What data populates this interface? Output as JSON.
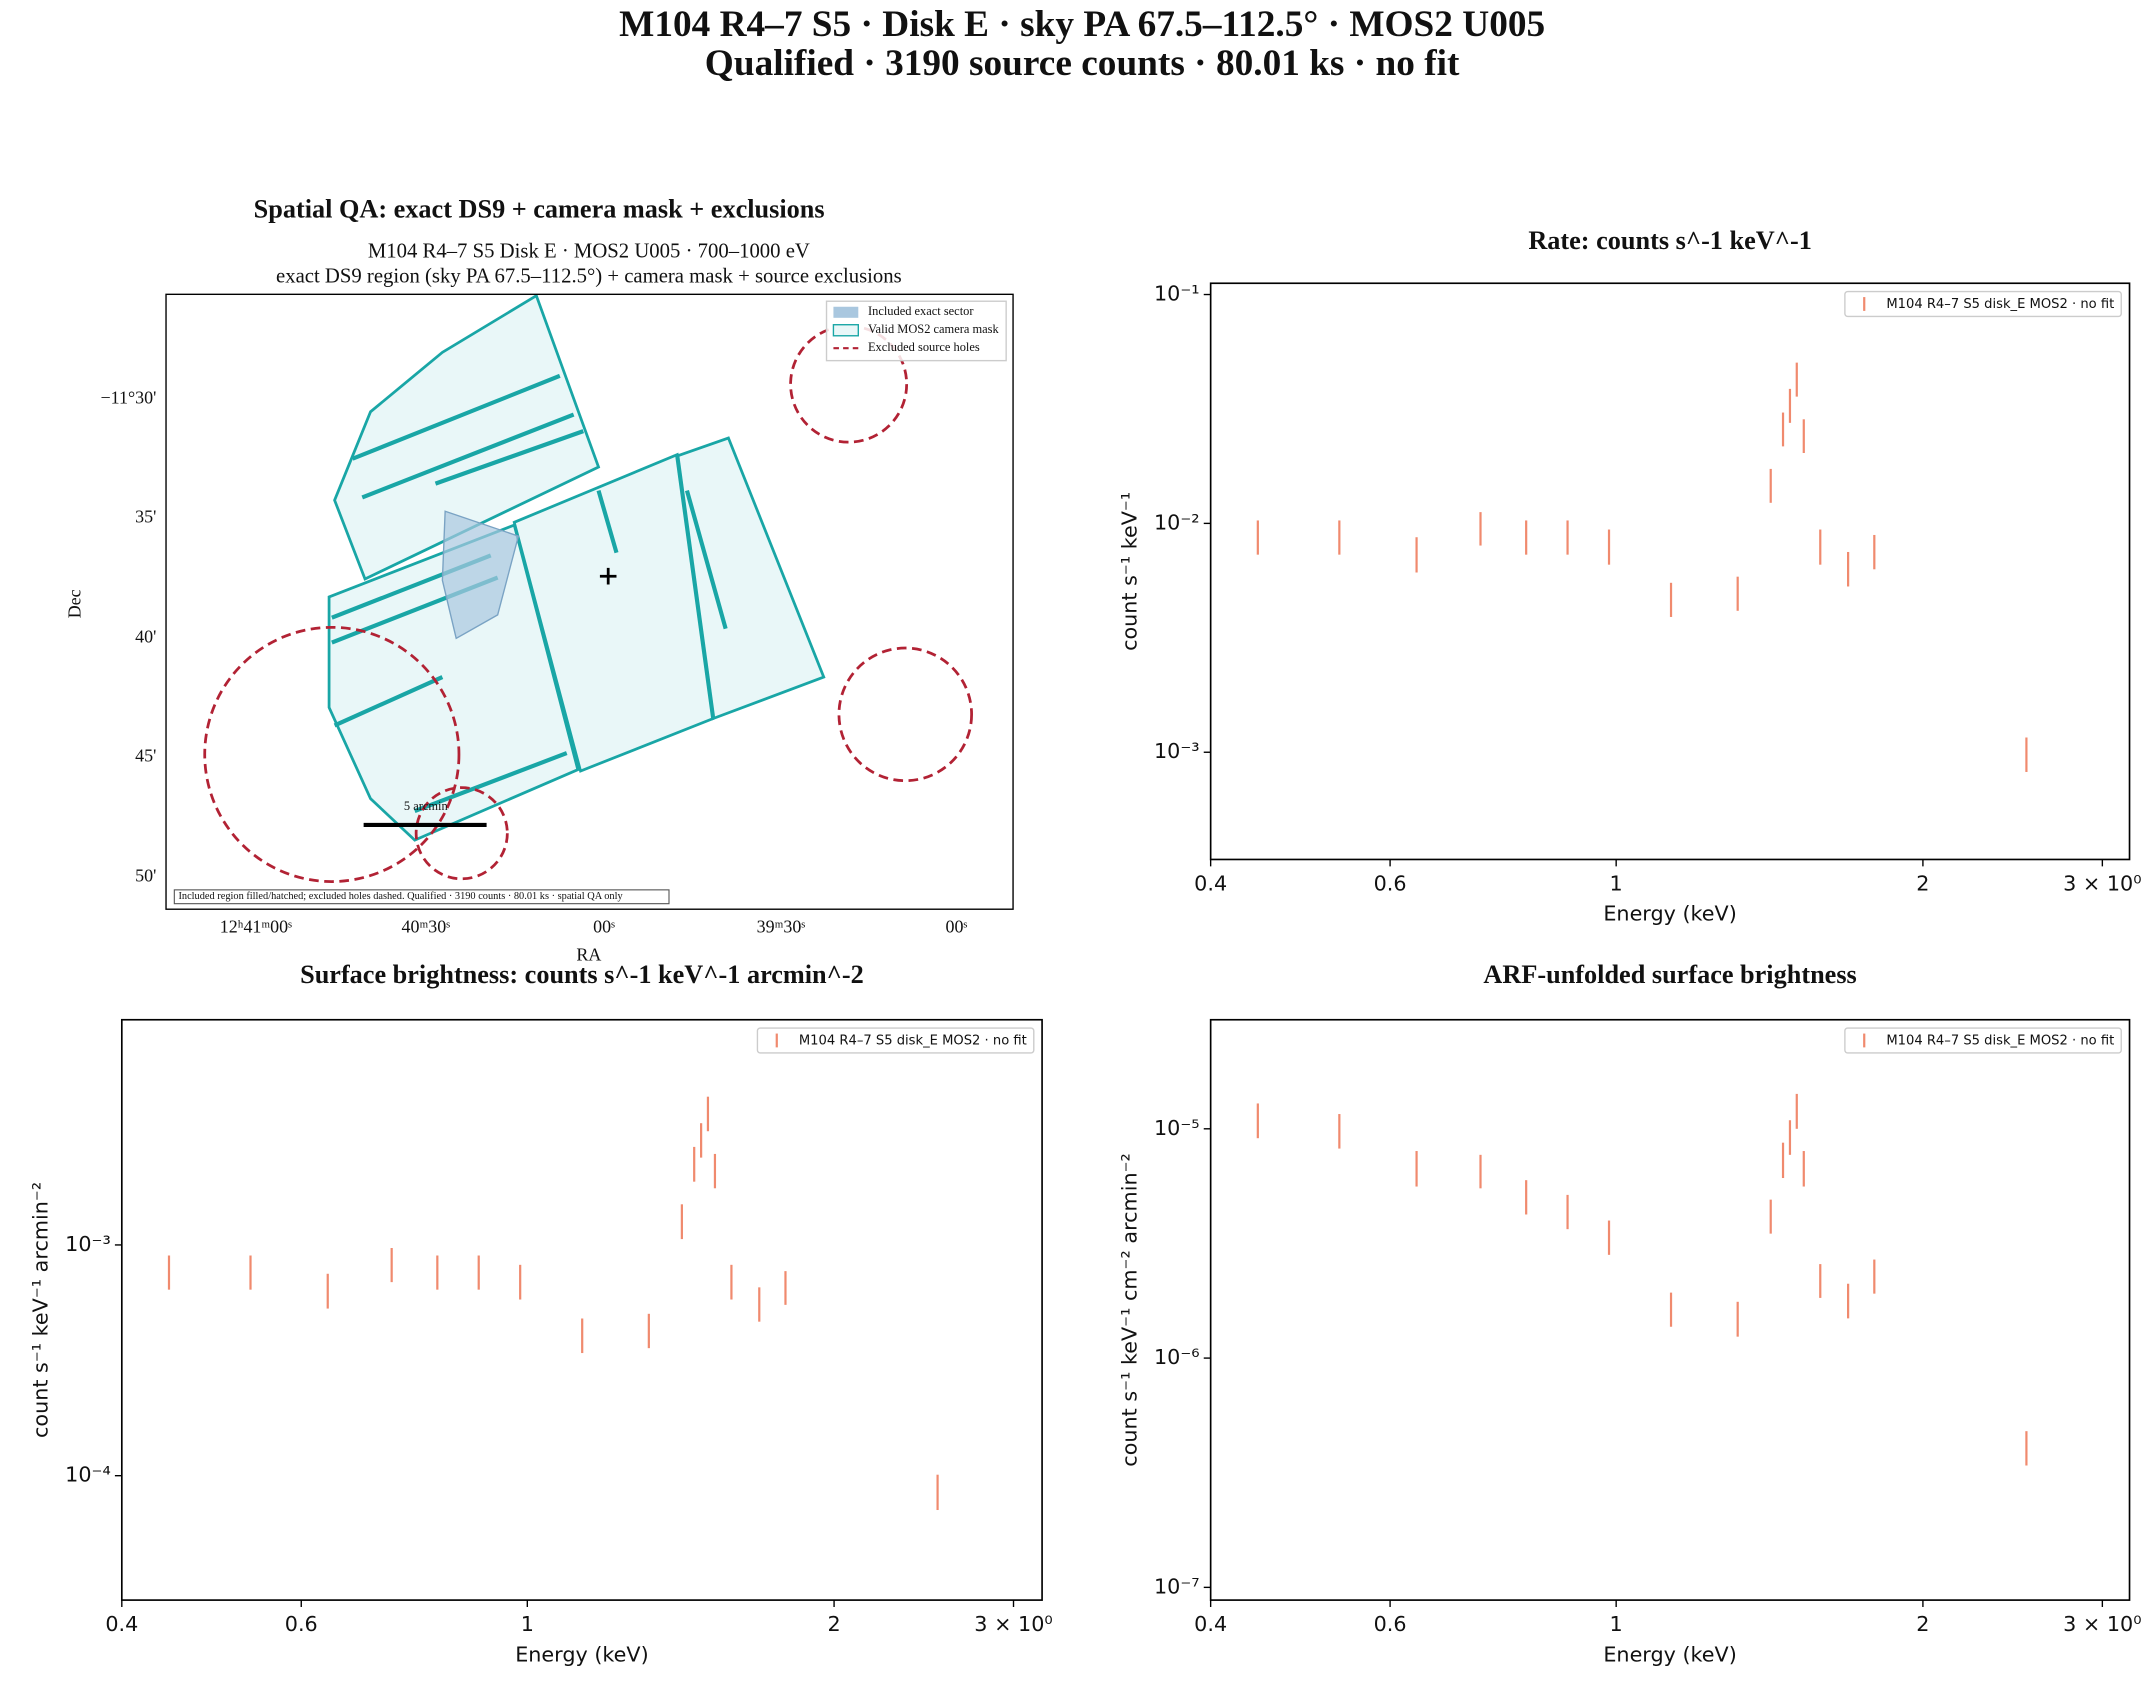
{
  "suptitle": [
    "M104 R4–7 S5 · Disk E · sky PA 67.5–112.5° · MOS2 U005",
    "Qualified · 3190 source counts · 80.01 ks · no fit"
  ],
  "chart_data": [
    {
      "type": "map",
      "title": "Spatial QA: exact DS9 + camera mask + exclusions",
      "subtitle": [
        "M104 R4–7 S5 Disk E · MOS2 U005 · 700–1000 eV",
        "exact DS9 region (sky PA 67.5–112.5°) + camera mask + source exclusions"
      ],
      "xlabel": "RA",
      "ylabel": "Dec",
      "xtick_labels": [
        "12ʰ41ᵐ00ˢ",
        "40ᵐ30ˢ",
        "00ˢ",
        "39ᵐ30ˢ",
        "00ˢ"
      ],
      "ytick_labels": [
        "−11°30'",
        "35'",
        "40'",
        "45'",
        "50'"
      ],
      "legend": [
        "Included exact sector",
        "Valid MOS2 camera mask",
        "Excluded source holes"
      ],
      "scalebar_label": "5 arcmin",
      "note": "Included region filled/hatched; excluded holes dashed. Qualified · 3190 counts · 80.01 ks · spatial QA only"
    },
    {
      "type": "errorbar",
      "title": "Rate: counts s^-1 keV^-1",
      "xlabel": "Energy (keV)",
      "ylabel": "count s⁻¹ keV⁻¹",
      "xscale": "log",
      "yscale": "log",
      "legend": "upper right",
      "x": [
        0.445,
        0.535,
        0.637,
        0.736,
        0.816,
        0.896,
        0.984,
        1.132,
        1.316,
        1.418,
        1.458,
        1.481,
        1.504,
        1.528,
        1.586,
        1.689,
        1.792,
        2.527
      ],
      "series": [
        {
          "name": "M104 R4–7 S5 disk_E MOS2 · no fit",
          "color": "#f08a6e",
          "values": [
            0.0088,
            0.0088,
            0.0074,
            0.0096,
            0.0088,
            0.0088,
            0.008,
            0.0047,
            0.005,
            0.0148,
            0.0261,
            0.0331,
            0.0431,
            0.0244,
            0.008,
            0.0064,
            0.0076,
            0.00099
          ],
          "errors": [
            0.0015,
            0.0015,
            0.0013,
            0.0016,
            0.0015,
            0.0015,
            0.0014,
            0.0008,
            0.00085,
            0.0025,
            0.0044,
            0.0056,
            0.0073,
            0.0041,
            0.0014,
            0.0011,
            0.0013,
            0.00017
          ]
        }
      ],
      "xlim": [
        0.4,
        3.19
      ],
      "ylim": [
        0.00034,
        0.112
      ],
      "xticks": [
        0.4,
        0.6,
        1,
        2,
        {
          "value": 3,
          "label": "3 × 10⁰"
        }
      ],
      "yticks": [
        {
          "value": 0.1,
          "label": "10⁻¹"
        },
        {
          "value": 0.01,
          "label": "10⁻²"
        },
        {
          "value": 0.001,
          "label": "10⁻³"
        }
      ]
    },
    {
      "type": "errorbar",
      "title": "Surface brightness: counts s^-1 keV^-1 arcmin^-2",
      "xlabel": "Energy (keV)",
      "ylabel": "count s⁻¹ keV⁻¹ arcmin⁻²",
      "xscale": "log",
      "yscale": "log",
      "legend": "upper right",
      "x": [
        0.445,
        0.535,
        0.637,
        0.736,
        0.816,
        0.896,
        0.984,
        1.132,
        1.316,
        1.418,
        1.458,
        1.481,
        1.504,
        1.528,
        1.586,
        1.689,
        1.792,
        2.527
      ],
      "series": [
        {
          "name": "M104 R4–7 S5 disk_E MOS2 · no fit",
          "color": "#f08a6e",
          "values": [
            0.00077,
            0.00077,
            0.00064,
            0.00083,
            0.00077,
            0.00077,
            0.0007,
            0.00041,
            0.00043,
            0.00128,
            0.00227,
            0.00288,
            0.00375,
            0.00212,
            0.0007,
            0.00056,
            0.00066,
            8.6e-05
          ],
          "errors": [
            0.00013,
            0.00013,
            0.00011,
            0.00014,
            0.00013,
            0.00013,
            0.00012,
            7e-05,
            7.3e-05,
            0.00022,
            0.00039,
            0.00049,
            0.00064,
            0.00036,
            0.00012,
            9.5e-05,
            0.00011,
            1.5e-05
          ]
        }
      ],
      "xlim": [
        0.4,
        3.2
      ],
      "ylim": [
        2.89e-05,
        0.00946
      ],
      "xticks": [
        0.4,
        0.6,
        1,
        2,
        {
          "value": 3,
          "label": "3 × 10⁰"
        }
      ],
      "yticks": [
        {
          "value": 0.001,
          "label": "10⁻³"
        },
        {
          "value": 0.0001,
          "label": "10⁻⁴"
        }
      ]
    },
    {
      "type": "errorbar",
      "title": "ARF-unfolded surface brightness",
      "xlabel": "Energy (keV)",
      "ylabel": "count s⁻¹ keV⁻¹ cm⁻² arcmin⁻²",
      "xscale": "log",
      "yscale": "log",
      "legend": "upper right",
      "x": [
        0.445,
        0.535,
        0.637,
        0.736,
        0.816,
        0.896,
        0.984,
        1.132,
        1.316,
        1.418,
        1.458,
        1.481,
        1.504,
        1.528,
        1.586,
        1.689,
        1.792,
        2.527
      ],
      "series": [
        {
          "name": "M104 R4–7 S5 disk_E MOS2 · no fit",
          "color": "#f08a6e",
          "values": [
            1.1e-05,
            9.9e-06,
            6.8e-06,
            6.6e-06,
            5.1e-06,
            4.4e-06,
            3.4e-06,
            1.65e-06,
            1.5e-06,
            4.2e-06,
            7.4e-06,
            9.3e-06,
            1.21e-05,
            6.8e-06,
            2.2e-06,
            1.8e-06,
            2.3e-06,
            4.1e-07
          ],
          "errors": [
            1.9e-06,
            1.7e-06,
            1.2e-06,
            1.1e-06,
            8.7e-07,
            7.5e-07,
            5.8e-07,
            2.8e-07,
            2.6e-07,
            7.1e-07,
            1.3e-06,
            1.6e-06,
            2.1e-06,
            1.2e-06,
            3.7e-07,
            3.1e-07,
            3.9e-07,
            7e-08
          ]
        }
      ],
      "xlim": [
        0.4,
        3.19
      ],
      "ylim": [
        8.8e-08,
        2.99e-05
      ],
      "xticks": [
        0.4,
        0.6,
        1,
        2,
        {
          "value": 3,
          "label": "3 × 10⁰"
        }
      ],
      "yticks": [
        {
          "value": 1e-05,
          "label": "10⁻⁵"
        },
        {
          "value": 1e-06,
          "label": "10⁻⁶"
        },
        {
          "value": 1e-07,
          "label": "10⁻⁷"
        }
      ]
    }
  ]
}
